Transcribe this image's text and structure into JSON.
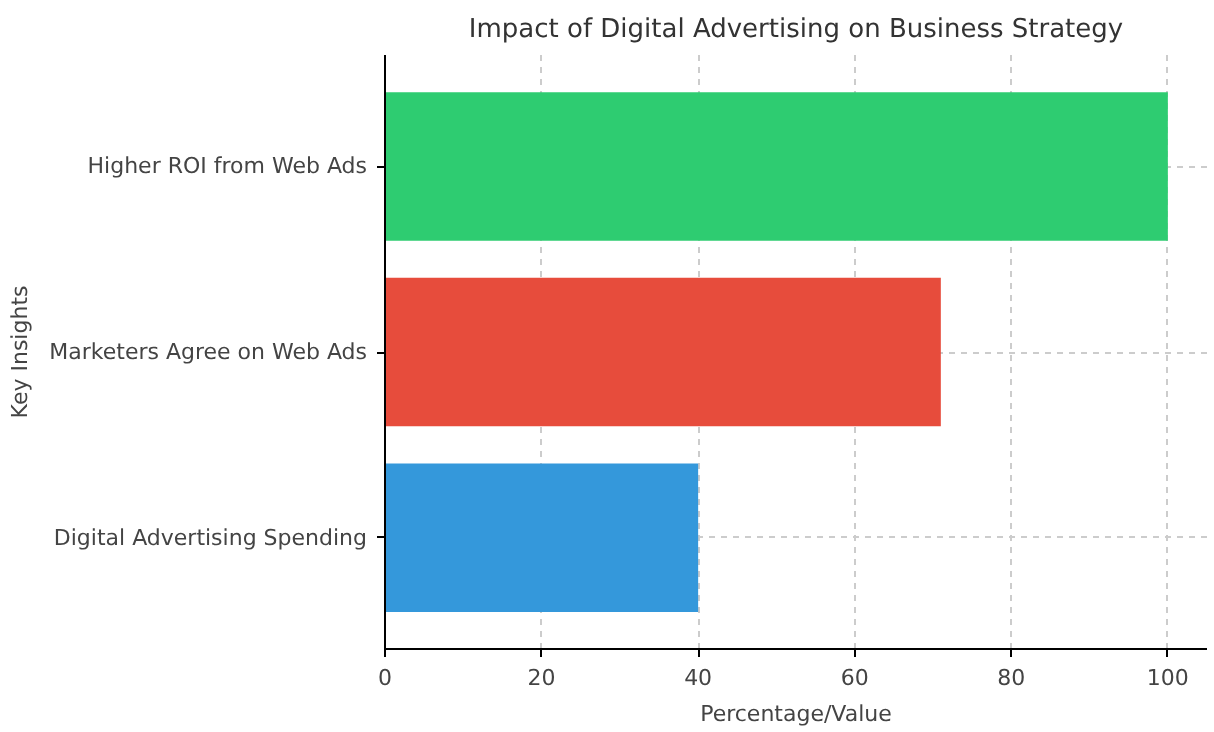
{
  "chart_data": {
    "type": "bar",
    "orientation": "horizontal",
    "title": "Impact of Digital Advertising on Business Strategy",
    "xlabel": "Percentage/Value",
    "ylabel": "Key Insights",
    "categories": [
      "Higher ROI from Web Ads",
      "Marketers Agree on Web Ads",
      "Digital Advertising Spending"
    ],
    "values": [
      100,
      71,
      40
    ],
    "colors": [
      "#2ecc71",
      "#e74c3c",
      "#3498db"
    ],
    "xlim": [
      0,
      105
    ],
    "xticks": [
      0,
      20,
      40,
      60,
      80,
      100
    ],
    "grid": true
  }
}
